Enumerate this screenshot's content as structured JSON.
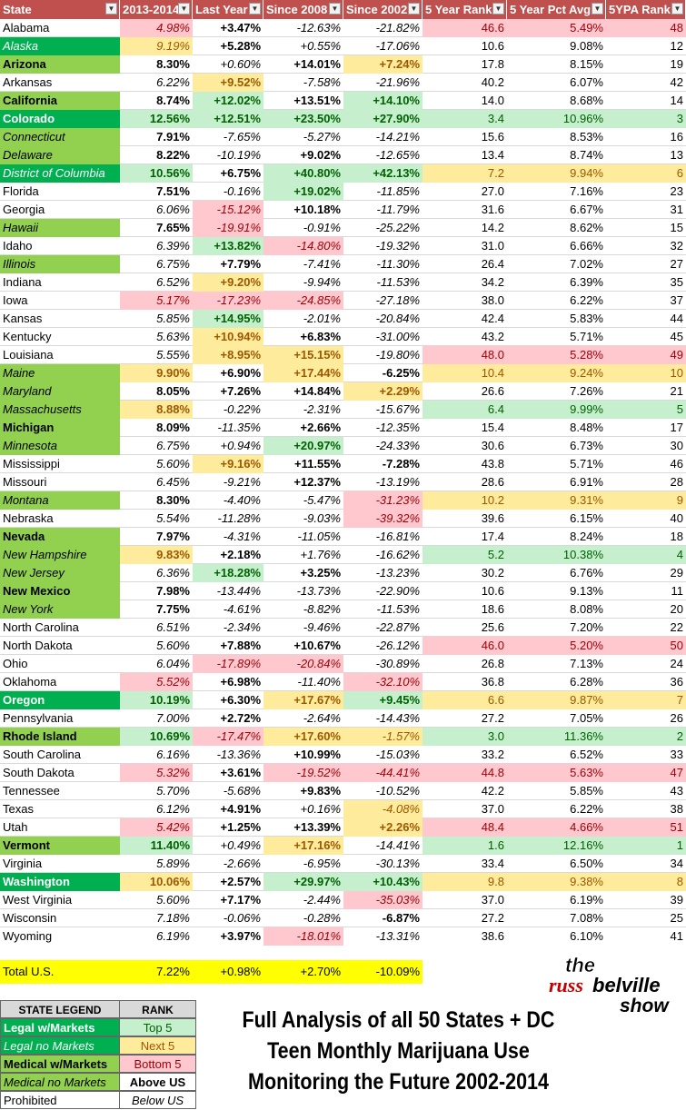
{
  "columns": [
    "State",
    "2013-2014",
    "Last Year",
    "Since 2008",
    "Since 2002",
    "5 Year Rank",
    "5 Year Pct Avg",
    "5YPA Rank"
  ],
  "rows": [
    {
      "state": "Alabama",
      "cls": "",
      "v": [
        "4.98%",
        "+3.47%",
        "-12.63%",
        "-21.82%",
        "46.6",
        "5.49%",
        "48"
      ],
      "f": [
        "i c-red",
        "b",
        "i",
        "i",
        "c-red",
        "c-red",
        "c-red"
      ]
    },
    {
      "state": "Alaska",
      "cls": "s-dgi",
      "v": [
        "9.19%",
        "+5.28%",
        "+0.55%",
        "-17.06%",
        "10.6",
        "9.08%",
        "12"
      ],
      "f": [
        "i c-yel",
        "b",
        "i",
        "i",
        "",
        "",
        ""
      ]
    },
    {
      "state": "Arizona",
      "cls": "s-lg b",
      "v": [
        "8.30%",
        "+0.60%",
        "+14.01%",
        "+7.24%",
        "17.8",
        "8.15%",
        "19"
      ],
      "f": [
        "b",
        "i",
        "b",
        "b c-yel",
        "",
        "",
        ""
      ]
    },
    {
      "state": "Arkansas",
      "cls": "",
      "v": [
        "6.22%",
        "+9.52%",
        "-7.58%",
        "-21.96%",
        "40.2",
        "6.07%",
        "42"
      ],
      "f": [
        "i",
        "b c-yel",
        "i",
        "i",
        "",
        "",
        ""
      ]
    },
    {
      "state": "California",
      "cls": "s-lg b",
      "v": [
        "8.74%",
        "+12.02%",
        "+13.51%",
        "+14.10%",
        "14.0",
        "8.68%",
        "14"
      ],
      "f": [
        "b",
        "b c-grn",
        "b",
        "b c-grn",
        "",
        "",
        ""
      ]
    },
    {
      "state": "Colorado",
      "cls": "s-dg b",
      "v": [
        "12.56%",
        "+12.51%",
        "+23.50%",
        "+27.90%",
        "3.4",
        "10.96%",
        "3"
      ],
      "f": [
        "b c-grn",
        "b c-grn",
        "b c-grn",
        "b c-grn",
        "c-grn",
        "c-grn",
        "c-grn"
      ]
    },
    {
      "state": "Connecticut",
      "cls": "s-lgi",
      "v": [
        "7.91%",
        "-7.65%",
        "-5.27%",
        "-14.21%",
        "15.6",
        "8.53%",
        "16"
      ],
      "f": [
        "b",
        "i",
        "i",
        "i",
        "",
        "",
        ""
      ]
    },
    {
      "state": "Delaware",
      "cls": "s-lgi",
      "v": [
        "8.22%",
        "-10.19%",
        "+9.02%",
        "-12.65%",
        "13.4",
        "8.74%",
        "13"
      ],
      "f": [
        "b",
        "i",
        "b",
        "i",
        "",
        "",
        ""
      ]
    },
    {
      "state": "District of Columbia",
      "cls": "s-dgi",
      "v": [
        "10.56%",
        "+6.75%",
        "+40.80%",
        "+42.13%",
        "7.2",
        "9.94%",
        "6"
      ],
      "f": [
        "b c-grn",
        "b",
        "b c-grn",
        "b c-grn",
        "c-yel",
        "c-yel",
        "c-yel"
      ]
    },
    {
      "state": "Florida",
      "cls": "",
      "v": [
        "7.51%",
        "-0.16%",
        "+19.02%",
        "-11.85%",
        "27.0",
        "7.16%",
        "23"
      ],
      "f": [
        "b",
        "i",
        "b c-grn",
        "i",
        "",
        "",
        ""
      ]
    },
    {
      "state": "Georgia",
      "cls": "",
      "v": [
        "6.06%",
        "-15.12%",
        "+10.18%",
        "-11.79%",
        "31.6",
        "6.67%",
        "31"
      ],
      "f": [
        "i",
        "i c-red",
        "b",
        "i",
        "",
        "",
        ""
      ]
    },
    {
      "state": "Hawaii",
      "cls": "s-lgi",
      "v": [
        "7.65%",
        "-19.91%",
        "-0.91%",
        "-25.22%",
        "14.2",
        "8.62%",
        "15"
      ],
      "f": [
        "b",
        "i c-red",
        "i",
        "i",
        "",
        "",
        ""
      ]
    },
    {
      "state": "Idaho",
      "cls": "",
      "v": [
        "6.39%",
        "+13.82%",
        "-14.80%",
        "-19.32%",
        "31.0",
        "6.66%",
        "32"
      ],
      "f": [
        "i",
        "b c-grn",
        "i c-red",
        "i",
        "",
        "",
        ""
      ]
    },
    {
      "state": "Illinois",
      "cls": "s-lgi",
      "v": [
        "6.75%",
        "+7.79%",
        "-7.41%",
        "-11.30%",
        "26.4",
        "7.02%",
        "27"
      ],
      "f": [
        "i",
        "b",
        "i",
        "i",
        "",
        "",
        ""
      ]
    },
    {
      "state": "Indiana",
      "cls": "",
      "v": [
        "6.52%",
        "+9.20%",
        "-9.94%",
        "-11.53%",
        "34.2",
        "6.39%",
        "35"
      ],
      "f": [
        "i",
        "b c-yel",
        "i",
        "i",
        "",
        "",
        ""
      ]
    },
    {
      "state": "Iowa",
      "cls": "",
      "v": [
        "5.17%",
        "-17.23%",
        "-24.85%",
        "-27.18%",
        "38.0",
        "6.22%",
        "37"
      ],
      "f": [
        "i c-red",
        "i c-red",
        "i c-red",
        "i",
        "",
        "",
        ""
      ]
    },
    {
      "state": "Kansas",
      "cls": "",
      "v": [
        "5.85%",
        "+14.95%",
        "-2.01%",
        "-20.84%",
        "42.4",
        "5.83%",
        "44"
      ],
      "f": [
        "i",
        "b c-grn",
        "i",
        "i",
        "",
        "",
        ""
      ]
    },
    {
      "state": "Kentucky",
      "cls": "",
      "v": [
        "5.63%",
        "+10.94%",
        "+6.83%",
        "-31.00%",
        "43.2",
        "5.71%",
        "45"
      ],
      "f": [
        "i",
        "b c-yel",
        "b",
        "i",
        "",
        "",
        ""
      ]
    },
    {
      "state": "Louisiana",
      "cls": "",
      "v": [
        "5.55%",
        "+8.95%",
        "+15.15%",
        "-19.80%",
        "48.0",
        "5.28%",
        "49"
      ],
      "f": [
        "i",
        "b c-yel",
        "b c-yel",
        "i",
        "c-red",
        "c-red",
        "c-red"
      ]
    },
    {
      "state": "Maine",
      "cls": "s-lgi",
      "v": [
        "9.90%",
        "+6.90%",
        "+17.44%",
        "-6.25%",
        "10.4",
        "9.24%",
        "10"
      ],
      "f": [
        "b c-yel",
        "b",
        "b c-yel",
        "b",
        "c-yel",
        "c-yel",
        "c-yel"
      ]
    },
    {
      "state": "Maryland",
      "cls": "s-lgi",
      "v": [
        "8.05%",
        "+7.26%",
        "+14.84%",
        "+2.29%",
        "26.6",
        "7.26%",
        "21"
      ],
      "f": [
        "b",
        "b",
        "b",
        "b c-yel",
        "",
        "",
        ""
      ]
    },
    {
      "state": "Massachusetts",
      "cls": "s-lgi",
      "v": [
        "8.88%",
        "-0.22%",
        "-2.31%",
        "-15.67%",
        "6.4",
        "9.99%",
        "5"
      ],
      "f": [
        "b c-yel",
        "i",
        "i",
        "i",
        "c-grn",
        "c-grn",
        "c-grn"
      ]
    },
    {
      "state": "Michigan",
      "cls": "s-lg b",
      "v": [
        "8.09%",
        "-11.35%",
        "+2.66%",
        "-12.35%",
        "15.4",
        "8.48%",
        "17"
      ],
      "f": [
        "b",
        "i",
        "b",
        "i",
        "",
        "",
        ""
      ]
    },
    {
      "state": "Minnesota",
      "cls": "s-lgi",
      "v": [
        "6.75%",
        "+0.94%",
        "+20.97%",
        "-24.33%",
        "30.6",
        "6.73%",
        "30"
      ],
      "f": [
        "i",
        "i",
        "b c-grn",
        "i",
        "",
        "",
        ""
      ]
    },
    {
      "state": "Mississippi",
      "cls": "",
      "v": [
        "5.60%",
        "+9.16%",
        "+11.55%",
        "-7.28%",
        "43.8",
        "5.71%",
        "46"
      ],
      "f": [
        "i",
        "b c-yel",
        "b",
        "b",
        "",
        "",
        ""
      ]
    },
    {
      "state": "Missouri",
      "cls": "",
      "v": [
        "6.45%",
        "-9.21%",
        "+12.37%",
        "-13.19%",
        "28.6",
        "6.91%",
        "28"
      ],
      "f": [
        "i",
        "i",
        "b",
        "i",
        "",
        "",
        ""
      ]
    },
    {
      "state": "Montana",
      "cls": "s-lgi",
      "v": [
        "8.30%",
        "-4.40%",
        "-5.47%",
        "-31.23%",
        "10.2",
        "9.31%",
        "9"
      ],
      "f": [
        "b",
        "i",
        "i",
        "i c-red",
        "c-yel",
        "c-yel",
        "c-yel"
      ]
    },
    {
      "state": "Nebraska",
      "cls": "",
      "v": [
        "5.54%",
        "-11.28%",
        "-9.03%",
        "-39.32%",
        "39.6",
        "6.15%",
        "40"
      ],
      "f": [
        "i",
        "i",
        "i",
        "i c-red",
        "",
        "",
        ""
      ]
    },
    {
      "state": "Nevada",
      "cls": "s-lg b",
      "v": [
        "7.97%",
        "-4.31%",
        "-11.05%",
        "-16.81%",
        "17.4",
        "8.24%",
        "18"
      ],
      "f": [
        "b",
        "i",
        "i",
        "i",
        "",
        "",
        ""
      ]
    },
    {
      "state": "New Hampshire",
      "cls": "s-lgi",
      "v": [
        "9.83%",
        "+2.18%",
        "+1.76%",
        "-16.62%",
        "5.2",
        "10.38%",
        "4"
      ],
      "f": [
        "b c-yel",
        "b",
        "i",
        "i",
        "c-grn",
        "c-grn",
        "c-grn"
      ]
    },
    {
      "state": "New Jersey",
      "cls": "s-lgi",
      "v": [
        "6.36%",
        "+18.28%",
        "+3.25%",
        "-13.23%",
        "30.2",
        "6.76%",
        "29"
      ],
      "f": [
        "i",
        "b c-grn",
        "b",
        "i",
        "",
        "",
        ""
      ]
    },
    {
      "state": "New Mexico",
      "cls": "s-lg b",
      "v": [
        "7.98%",
        "-13.44%",
        "-13.73%",
        "-22.90%",
        "10.6",
        "9.13%",
        "11"
      ],
      "f": [
        "b",
        "i",
        "i",
        "i",
        "",
        "",
        ""
      ]
    },
    {
      "state": "New York",
      "cls": "s-lgi",
      "v": [
        "7.75%",
        "-4.61%",
        "-8.82%",
        "-11.53%",
        "18.6",
        "8.08%",
        "20"
      ],
      "f": [
        "b",
        "i",
        "i",
        "i",
        "",
        "",
        ""
      ]
    },
    {
      "state": "North Carolina",
      "cls": "",
      "v": [
        "6.51%",
        "-2.34%",
        "-9.46%",
        "-22.87%",
        "25.6",
        "7.20%",
        "22"
      ],
      "f": [
        "i",
        "i",
        "i",
        "i",
        "",
        "",
        ""
      ]
    },
    {
      "state": "North Dakota",
      "cls": "",
      "v": [
        "5.60%",
        "+7.88%",
        "+10.67%",
        "-26.12%",
        "46.0",
        "5.20%",
        "50"
      ],
      "f": [
        "i",
        "b",
        "b",
        "i",
        "c-red",
        "c-red",
        "c-red"
      ]
    },
    {
      "state": "Ohio",
      "cls": "",
      "v": [
        "6.04%",
        "-17.89%",
        "-20.84%",
        "-30.89%",
        "26.8",
        "7.13%",
        "24"
      ],
      "f": [
        "i",
        "i c-red",
        "i c-red",
        "i",
        "",
        "",
        ""
      ]
    },
    {
      "state": "Oklahoma",
      "cls": "",
      "v": [
        "5.52%",
        "+6.98%",
        "-11.40%",
        "-32.10%",
        "36.8",
        "6.28%",
        "36"
      ],
      "f": [
        "i c-red",
        "b",
        "i",
        "i c-red",
        "",
        "",
        ""
      ]
    },
    {
      "state": "Oregon",
      "cls": "s-dg b",
      "v": [
        "10.19%",
        "+6.30%",
        "+17.67%",
        "+9.45%",
        "6.6",
        "9.87%",
        "7"
      ],
      "f": [
        "b c-grn",
        "b",
        "b c-yel",
        "b c-grn",
        "c-yel",
        "c-yel",
        "c-yel"
      ]
    },
    {
      "state": "Pennsylvania",
      "cls": "",
      "v": [
        "7.00%",
        "+2.72%",
        "-2.64%",
        "-14.43%",
        "27.2",
        "7.05%",
        "26"
      ],
      "f": [
        "i",
        "b",
        "i",
        "i",
        "",
        "",
        ""
      ]
    },
    {
      "state": "Rhode Island",
      "cls": "s-lg b",
      "v": [
        "10.69%",
        "-17.47%",
        "+17.60%",
        "-1.57%",
        "3.0",
        "11.36%",
        "2"
      ],
      "f": [
        "b c-grn",
        "i c-red",
        "b c-yel",
        "i c-yel",
        "c-grn",
        "c-grn",
        "c-grn"
      ]
    },
    {
      "state": "South Carolina",
      "cls": "",
      "v": [
        "6.16%",
        "-13.36%",
        "+10.99%",
        "-15.03%",
        "33.2",
        "6.52%",
        "33"
      ],
      "f": [
        "i",
        "i",
        "b",
        "i",
        "",
        "",
        ""
      ]
    },
    {
      "state": "South Dakota",
      "cls": "",
      "v": [
        "5.32%",
        "+3.61%",
        "-19.52%",
        "-44.41%",
        "44.8",
        "5.63%",
        "47"
      ],
      "f": [
        "i c-red",
        "b",
        "i c-red",
        "i c-red",
        "c-red",
        "c-red",
        "c-red"
      ]
    },
    {
      "state": "Tennessee",
      "cls": "",
      "v": [
        "5.70%",
        "-5.68%",
        "+9.83%",
        "-10.52%",
        "42.2",
        "5.85%",
        "43"
      ],
      "f": [
        "i",
        "i",
        "b",
        "i",
        "",
        "",
        ""
      ]
    },
    {
      "state": "Texas",
      "cls": "",
      "v": [
        "6.12%",
        "+4.91%",
        "+0.16%",
        "-4.08%",
        "37.0",
        "6.22%",
        "38"
      ],
      "f": [
        "i",
        "b",
        "i",
        "i c-yel",
        "",
        "",
        ""
      ]
    },
    {
      "state": "Utah",
      "cls": "",
      "v": [
        "5.42%",
        "+1.25%",
        "+13.39%",
        "+2.26%",
        "48.4",
        "4.66%",
        "51"
      ],
      "f": [
        "i c-red",
        "b",
        "b",
        "b c-yel",
        "c-red",
        "c-red",
        "c-red"
      ]
    },
    {
      "state": "Vermont",
      "cls": "s-lg b",
      "v": [
        "11.40%",
        "+0.49%",
        "+17.16%",
        "-14.41%",
        "1.6",
        "12.16%",
        "1"
      ],
      "f": [
        "b c-grn",
        "i",
        "b c-yel",
        "i",
        "c-grn",
        "c-grn",
        "c-grn"
      ]
    },
    {
      "state": "Virginia",
      "cls": "",
      "v": [
        "5.89%",
        "-2.66%",
        "-6.95%",
        "-30.13%",
        "33.4",
        "6.50%",
        "34"
      ],
      "f": [
        "i",
        "i",
        "i",
        "i",
        "",
        "",
        ""
      ]
    },
    {
      "state": "Washington",
      "cls": "s-dg b",
      "v": [
        "10.06%",
        "+2.57%",
        "+29.97%",
        "+10.43%",
        "9.8",
        "9.38%",
        "8"
      ],
      "f": [
        "b c-yel",
        "b",
        "b c-grn",
        "b c-grn",
        "c-yel",
        "c-yel",
        "c-yel"
      ]
    },
    {
      "state": "West Virginia",
      "cls": "",
      "v": [
        "5.60%",
        "+7.17%",
        "-2.44%",
        "-35.03%",
        "37.0",
        "6.19%",
        "39"
      ],
      "f": [
        "i",
        "b",
        "i",
        "i c-red",
        "",
        "",
        ""
      ]
    },
    {
      "state": "Wisconsin",
      "cls": "",
      "v": [
        "7.18%",
        "-0.06%",
        "-0.28%",
        "-6.87%",
        "27.2",
        "7.08%",
        "25"
      ],
      "f": [
        "i",
        "i",
        "i",
        "b",
        "",
        "",
        ""
      ]
    },
    {
      "state": "Wyoming",
      "cls": "",
      "v": [
        "6.19%",
        "+3.97%",
        "-18.01%",
        "-13.31%",
        "38.6",
        "6.10%",
        "41"
      ],
      "f": [
        "i",
        "b",
        "i c-red",
        "i",
        "",
        "",
        ""
      ]
    }
  ],
  "total": {
    "label": "Total U.S.",
    "v": [
      "7.22%",
      "+0.98%",
      "+2.70%",
      "-10.09%"
    ]
  },
  "legend": {
    "header_left": "STATE LEGEND",
    "header_right": "RANK",
    "rows": [
      {
        "left": "Legal w/Markets",
        "right": "Top 5"
      },
      {
        "left": "Legal no Markets",
        "right": "Next 5"
      },
      {
        "left": "Medical w/Markets",
        "right": "Bottom 5"
      },
      {
        "left": "Medical no Markets",
        "right": "Above US"
      },
      {
        "left": "Prohibited",
        "right": "Below US"
      }
    ]
  },
  "caption": {
    "line1": "Full Analysis of all 50 States + DC",
    "line2": "Teen Monthly Marijuana Use",
    "line3": "Monitoring the Future 2002-2014"
  },
  "logo": {
    "w1": "the",
    "w2": "russ",
    "w3": "belville",
    "w4": "show"
  },
  "colors": {
    "header": "#c0504d",
    "legal_markets": "#00b050",
    "legal_other": "#92d050",
    "top": "#c6efce",
    "next": "#ffeb9c",
    "bottom": "#ffc7ce",
    "total": "#ffff00"
  }
}
